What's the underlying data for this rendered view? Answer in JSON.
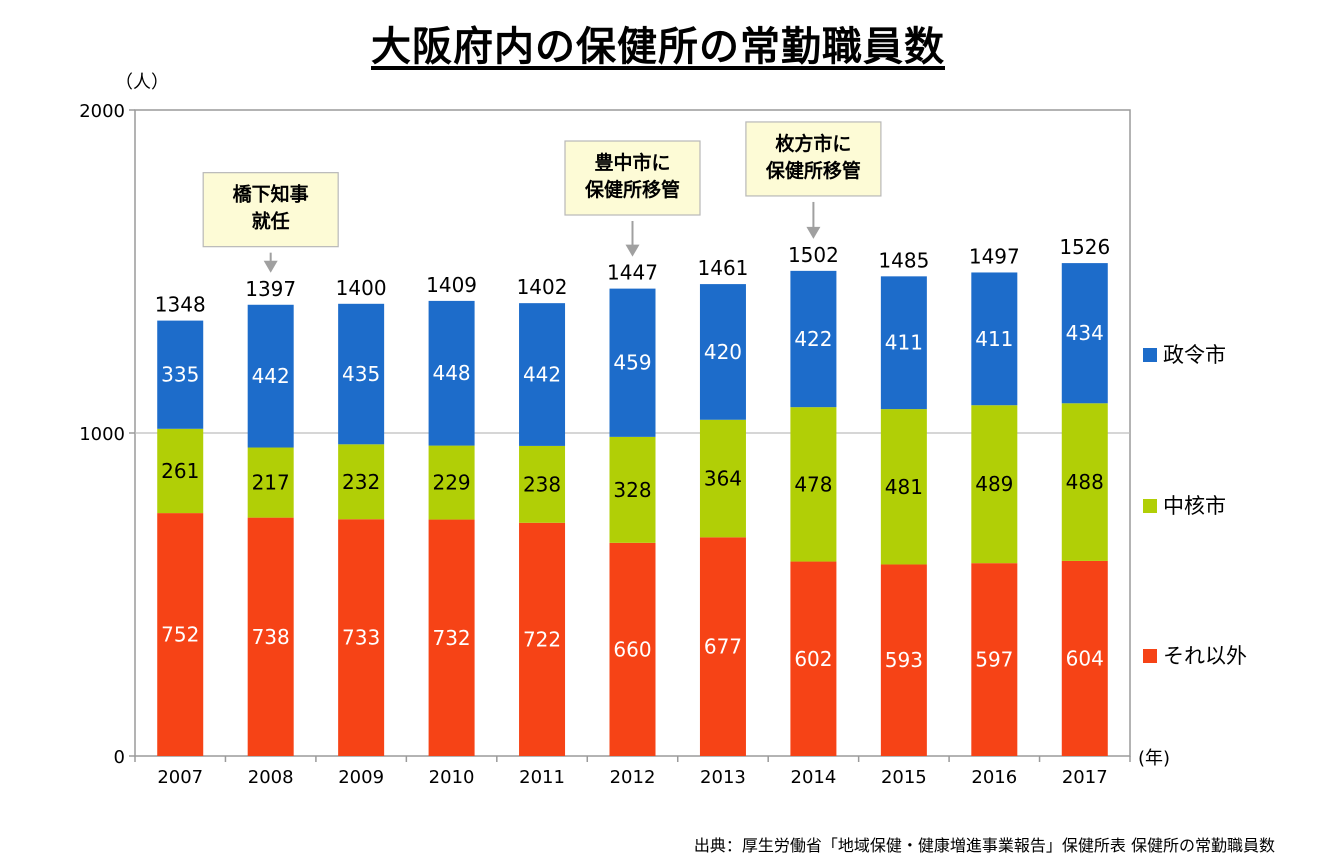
{
  "chart_data": {
    "type": "bar",
    "stacked": true,
    "title": "大阪府内の保健所の常勤職員数",
    "y_unit": "（人）",
    "x_unit": "(年)",
    "ylim": [
      0,
      2000
    ],
    "y_ticks": [
      0,
      1000,
      2000
    ],
    "grid": true,
    "legend_position": "right",
    "categories": [
      "2007",
      "2008",
      "2009",
      "2010",
      "2011",
      "2012",
      "2013",
      "2014",
      "2015",
      "2016",
      "2017"
    ],
    "series": [
      {
        "name": "それ以外",
        "color": "#f64316",
        "label_color": "#ffffff",
        "values": [
          752,
          738,
          733,
          732,
          722,
          660,
          677,
          602,
          593,
          597,
          604
        ]
      },
      {
        "name": "中核市",
        "color": "#b1cf06",
        "label_color": "#000000",
        "values": [
          261,
          217,
          232,
          229,
          238,
          328,
          364,
          478,
          481,
          489,
          488
        ]
      },
      {
        "name": "政令市",
        "color": "#1d6cca",
        "label_color": "#ffffff",
        "values": [
          335,
          442,
          435,
          448,
          442,
          459,
          420,
          422,
          411,
          411,
          434
        ]
      }
    ],
    "totals": [
      1348,
      1397,
      1400,
      1409,
      1402,
      1447,
      1461,
      1502,
      1485,
      1497,
      1526
    ],
    "legend_order": [
      "政令市",
      "中核市",
      "それ以外"
    ],
    "annotations": [
      {
        "category": "2008",
        "lines": [
          "橋下知事",
          "就任"
        ],
        "box_top_value": 1806
      },
      {
        "category": "2012",
        "lines": [
          "豊中市に",
          "保健所移管"
        ],
        "box_top_value": 1904
      },
      {
        "category": "2014",
        "lines": [
          "枚方市に",
          "保健所移管"
        ],
        "box_top_value": 1963
      }
    ],
    "source": "出典：厚生労働省「地域保健・健康増進事業報告」保健所表 保健所の常勤職員数"
  }
}
